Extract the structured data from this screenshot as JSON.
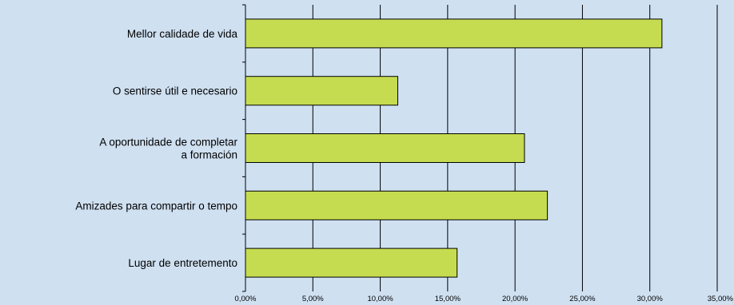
{
  "colors": {
    "background": "#cfe0f1",
    "bar_fill": "#c6dc50",
    "bar_stroke": "#000000",
    "grid": "#000000"
  },
  "chart_data": {
    "type": "bar",
    "orientation": "horizontal",
    "categories": [
      [
        "Mellor calidade de vida"
      ],
      [
        "O sentirse útil e necesario"
      ],
      [
        "A oportunidade de completar",
        "a formación"
      ],
      [
        "Amizades para compartir o tempo"
      ],
      [
        "Lugar de entretemento"
      ]
    ],
    "values": [
      30.9,
      11.3,
      20.7,
      22.4,
      15.7
    ],
    "xlim": [
      0,
      35
    ],
    "xticks": [
      0,
      5,
      10,
      15,
      20,
      25,
      30,
      35
    ],
    "xtick_labels": [
      "0,00%",
      "5,00%",
      "10,00%",
      "15,00%",
      "20,00%",
      "25,00%",
      "30,00%",
      "35,00%"
    ],
    "grid": "vertical",
    "title": "",
    "xlabel": "",
    "ylabel": "",
    "legend": "none"
  }
}
